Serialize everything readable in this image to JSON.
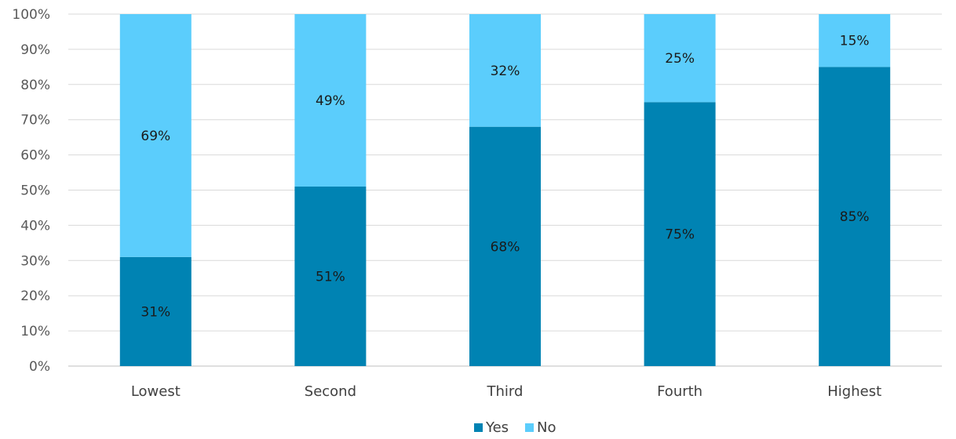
{
  "chart_data": {
    "type": "bar",
    "stacked": true,
    "categories": [
      "Lowest",
      "Second",
      "Third",
      "Fourth",
      "Highest"
    ],
    "series": [
      {
        "name": "Yes",
        "values": [
          31,
          51,
          68,
          75,
          85
        ],
        "labels": [
          "31%",
          "51%",
          "68%",
          "75%",
          "85%"
        ],
        "color": "#0083b3"
      },
      {
        "name": "No",
        "values": [
          69,
          49,
          32,
          25,
          15
        ],
        "labels": [
          "69%",
          "49%",
          "32%",
          "25%",
          "15%"
        ],
        "color": "#5bcdfc"
      }
    ],
    "ylim": [
      0,
      100
    ],
    "yticks": [
      0,
      10,
      20,
      30,
      40,
      50,
      60,
      70,
      80,
      90,
      100
    ],
    "ytick_labels": [
      "0%",
      "10%",
      "20%",
      "30%",
      "40%",
      "50%",
      "60%",
      "70%",
      "80%",
      "90%",
      "100%"
    ],
    "grid": true,
    "legend_position": "bottom-center",
    "title": "",
    "xlabel": "",
    "ylabel": ""
  }
}
